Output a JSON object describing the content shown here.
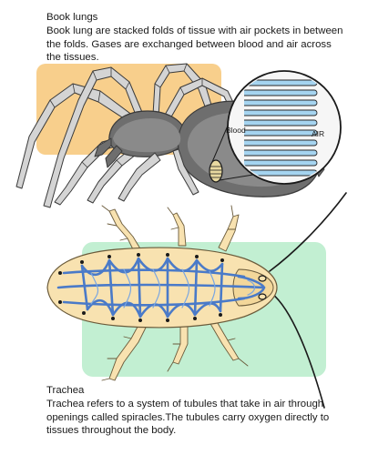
{
  "book_lungs": {
    "title": "Book lungs",
    "description": "Book lung are stacked folds of tissue with air pockets in between the folds. Gases are exchanged between blood and air across the tissues.",
    "label_blood": "Blood",
    "label_air": "AIR"
  },
  "trachea": {
    "title": "Trachea",
    "description": "Trachea refers to a system of tubules that take in air through openings called spiracles.The tubules carry oxygen directly to tissues throughout the body."
  },
  "colors": {
    "orange_panel": "#f8cf8c",
    "green_panel": "#c2efd2",
    "spider_body": "#6e6e6e",
    "spider_legs": "#d4d4d4",
    "lung_fold": "#a5d4f0",
    "roach_body": "#f8e2b0",
    "trachea_tubes": "#4a7ac8",
    "spiracle": "#1a1a1a"
  }
}
